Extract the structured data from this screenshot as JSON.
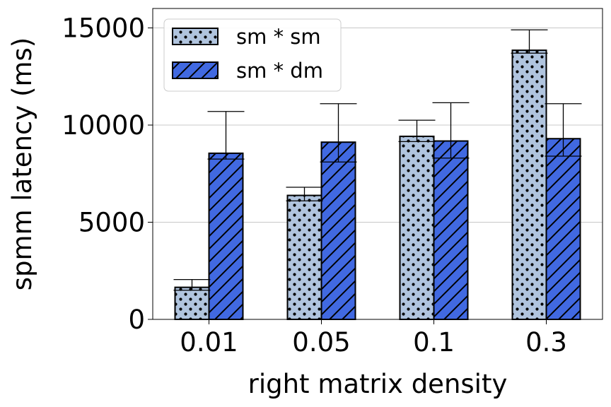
{
  "chart_data": {
    "type": "bar",
    "xlabel": "right matrix density",
    "ylabel": "spmm latency (ms)",
    "categories": [
      "0.01",
      "0.05",
      "0.1",
      "0.3"
    ],
    "ylim": [
      0,
      16000
    ],
    "yticks": [
      0,
      5000,
      10000,
      15000
    ],
    "grid": "horizontal",
    "legend_position": "top-left",
    "series": [
      {
        "name": "sm * sm",
        "color": "#b0c4de",
        "pattern": "dots",
        "values": [
          1650,
          6380,
          9420,
          13850
        ],
        "error_low": [
          1500,
          6100,
          9150,
          13700
        ],
        "error_high": [
          2050,
          6800,
          10250,
          14900
        ]
      },
      {
        "name": "sm * dm",
        "color": "#4169e1",
        "pattern": "hatch",
        "values": [
          8550,
          9120,
          9180,
          9300
        ],
        "error_low": [
          8250,
          8100,
          8300,
          8400
        ],
        "error_high": [
          10700,
          11100,
          11150,
          11100
        ]
      }
    ]
  }
}
